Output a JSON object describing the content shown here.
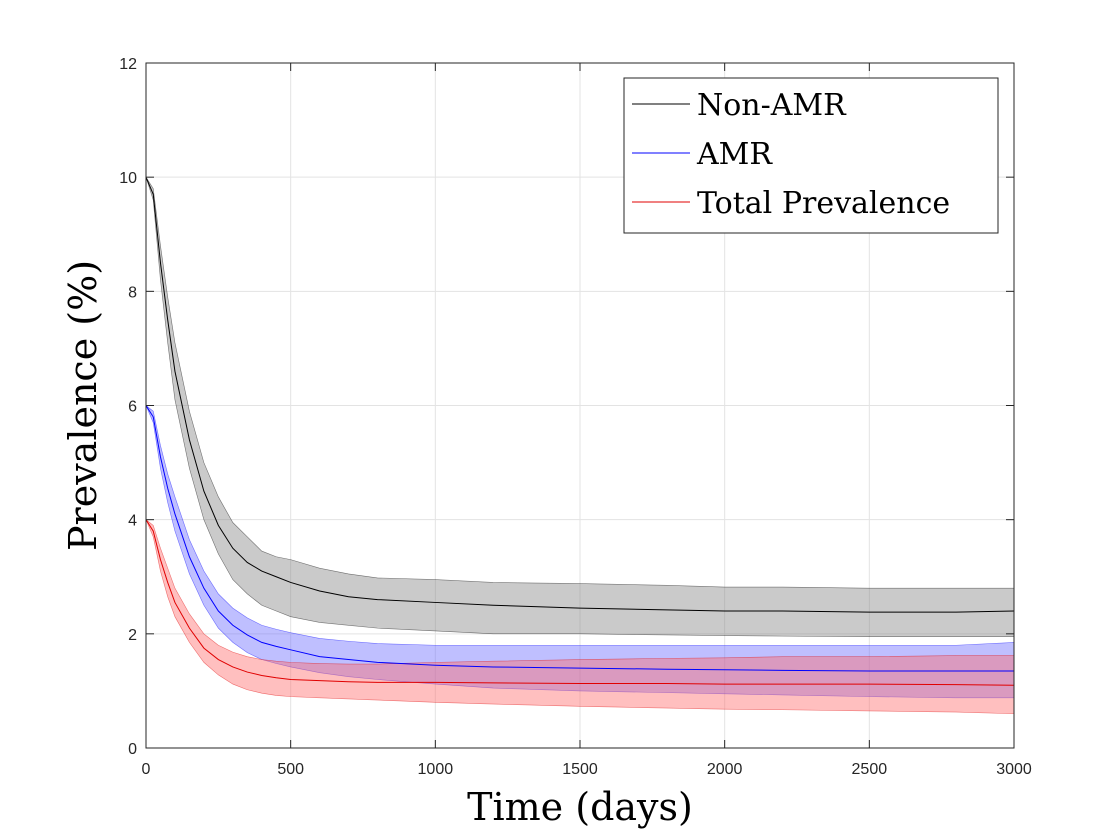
{
  "chart_data": {
    "type": "line",
    "title": "",
    "xlabel": "Time (days)",
    "ylabel": "Prevalence (%)",
    "xlim": [
      0,
      3000
    ],
    "ylim": [
      0,
      12
    ],
    "xticks": [
      0,
      500,
      1000,
      1500,
      2000,
      2500,
      3000
    ],
    "yticks": [
      0,
      2,
      4,
      6,
      8,
      10,
      12
    ],
    "grid": true,
    "legend_position": "top-right",
    "x": [
      0,
      25,
      50,
      75,
      100,
      150,
      200,
      250,
      300,
      350,
      400,
      450,
      500,
      600,
      700,
      800,
      1000,
      1200,
      1500,
      1800,
      2000,
      2200,
      2500,
      2800,
      3000
    ],
    "series": [
      {
        "name": "Non-AMR",
        "color": "#000000",
        "band_color": "#808080",
        "mean": [
          10.0,
          9.7,
          8.5,
          7.5,
          6.6,
          5.4,
          4.5,
          3.9,
          3.5,
          3.25,
          3.1,
          3.0,
          2.9,
          2.75,
          2.65,
          2.6,
          2.55,
          2.5,
          2.45,
          2.42,
          2.4,
          2.4,
          2.38,
          2.38,
          2.4
        ],
        "lower": [
          10.0,
          9.6,
          8.2,
          7.1,
          6.1,
          4.9,
          4.0,
          3.4,
          2.95,
          2.7,
          2.5,
          2.4,
          2.3,
          2.2,
          2.15,
          2.1,
          2.05,
          2.0,
          2.0,
          1.98,
          1.97,
          1.96,
          1.95,
          1.95,
          1.95
        ],
        "upper": [
          10.0,
          9.8,
          8.8,
          7.9,
          7.1,
          5.9,
          5.0,
          4.4,
          3.95,
          3.7,
          3.45,
          3.35,
          3.3,
          3.15,
          3.05,
          2.98,
          2.95,
          2.9,
          2.88,
          2.85,
          2.82,
          2.82,
          2.8,
          2.8,
          2.8
        ]
      },
      {
        "name": "AMR",
        "color": "#0000ff",
        "band_color": "#6666ff",
        "mean": [
          6.0,
          5.8,
          5.1,
          4.55,
          4.1,
          3.35,
          2.8,
          2.4,
          2.15,
          1.98,
          1.85,
          1.78,
          1.72,
          1.6,
          1.55,
          1.5,
          1.45,
          1.42,
          1.4,
          1.38,
          1.37,
          1.36,
          1.35,
          1.35,
          1.35
        ],
        "lower": [
          6.0,
          5.7,
          4.9,
          4.3,
          3.8,
          3.05,
          2.5,
          2.1,
          1.85,
          1.67,
          1.55,
          1.48,
          1.42,
          1.32,
          1.25,
          1.2,
          1.12,
          1.05,
          1.0,
          0.97,
          0.95,
          0.93,
          0.9,
          0.88,
          0.88
        ],
        "upper": [
          6.0,
          5.9,
          5.3,
          4.8,
          4.4,
          3.65,
          3.1,
          2.7,
          2.45,
          2.28,
          2.15,
          2.08,
          2.02,
          1.92,
          1.87,
          1.83,
          1.8,
          1.8,
          1.8,
          1.8,
          1.8,
          1.8,
          1.8,
          1.8,
          1.85
        ]
      },
      {
        "name": "Total Prevalence",
        "color": "#e00000",
        "band_color": "#ff6666",
        "mean": [
          4.0,
          3.8,
          3.3,
          2.9,
          2.55,
          2.1,
          1.75,
          1.55,
          1.42,
          1.33,
          1.27,
          1.23,
          1.2,
          1.18,
          1.16,
          1.15,
          1.15,
          1.14,
          1.13,
          1.13,
          1.12,
          1.12,
          1.12,
          1.11,
          1.1
        ],
        "lower": [
          4.0,
          3.7,
          3.1,
          2.65,
          2.3,
          1.85,
          1.5,
          1.28,
          1.12,
          1.02,
          0.96,
          0.92,
          0.9,
          0.88,
          0.86,
          0.84,
          0.8,
          0.77,
          0.73,
          0.7,
          0.68,
          0.67,
          0.65,
          0.63,
          0.6
        ],
        "upper": [
          4.0,
          3.9,
          3.5,
          3.15,
          2.8,
          2.35,
          2.0,
          1.8,
          1.68,
          1.6,
          1.55,
          1.52,
          1.5,
          1.48,
          1.47,
          1.47,
          1.5,
          1.52,
          1.55,
          1.57,
          1.58,
          1.6,
          1.6,
          1.62,
          1.62
        ]
      }
    ]
  }
}
